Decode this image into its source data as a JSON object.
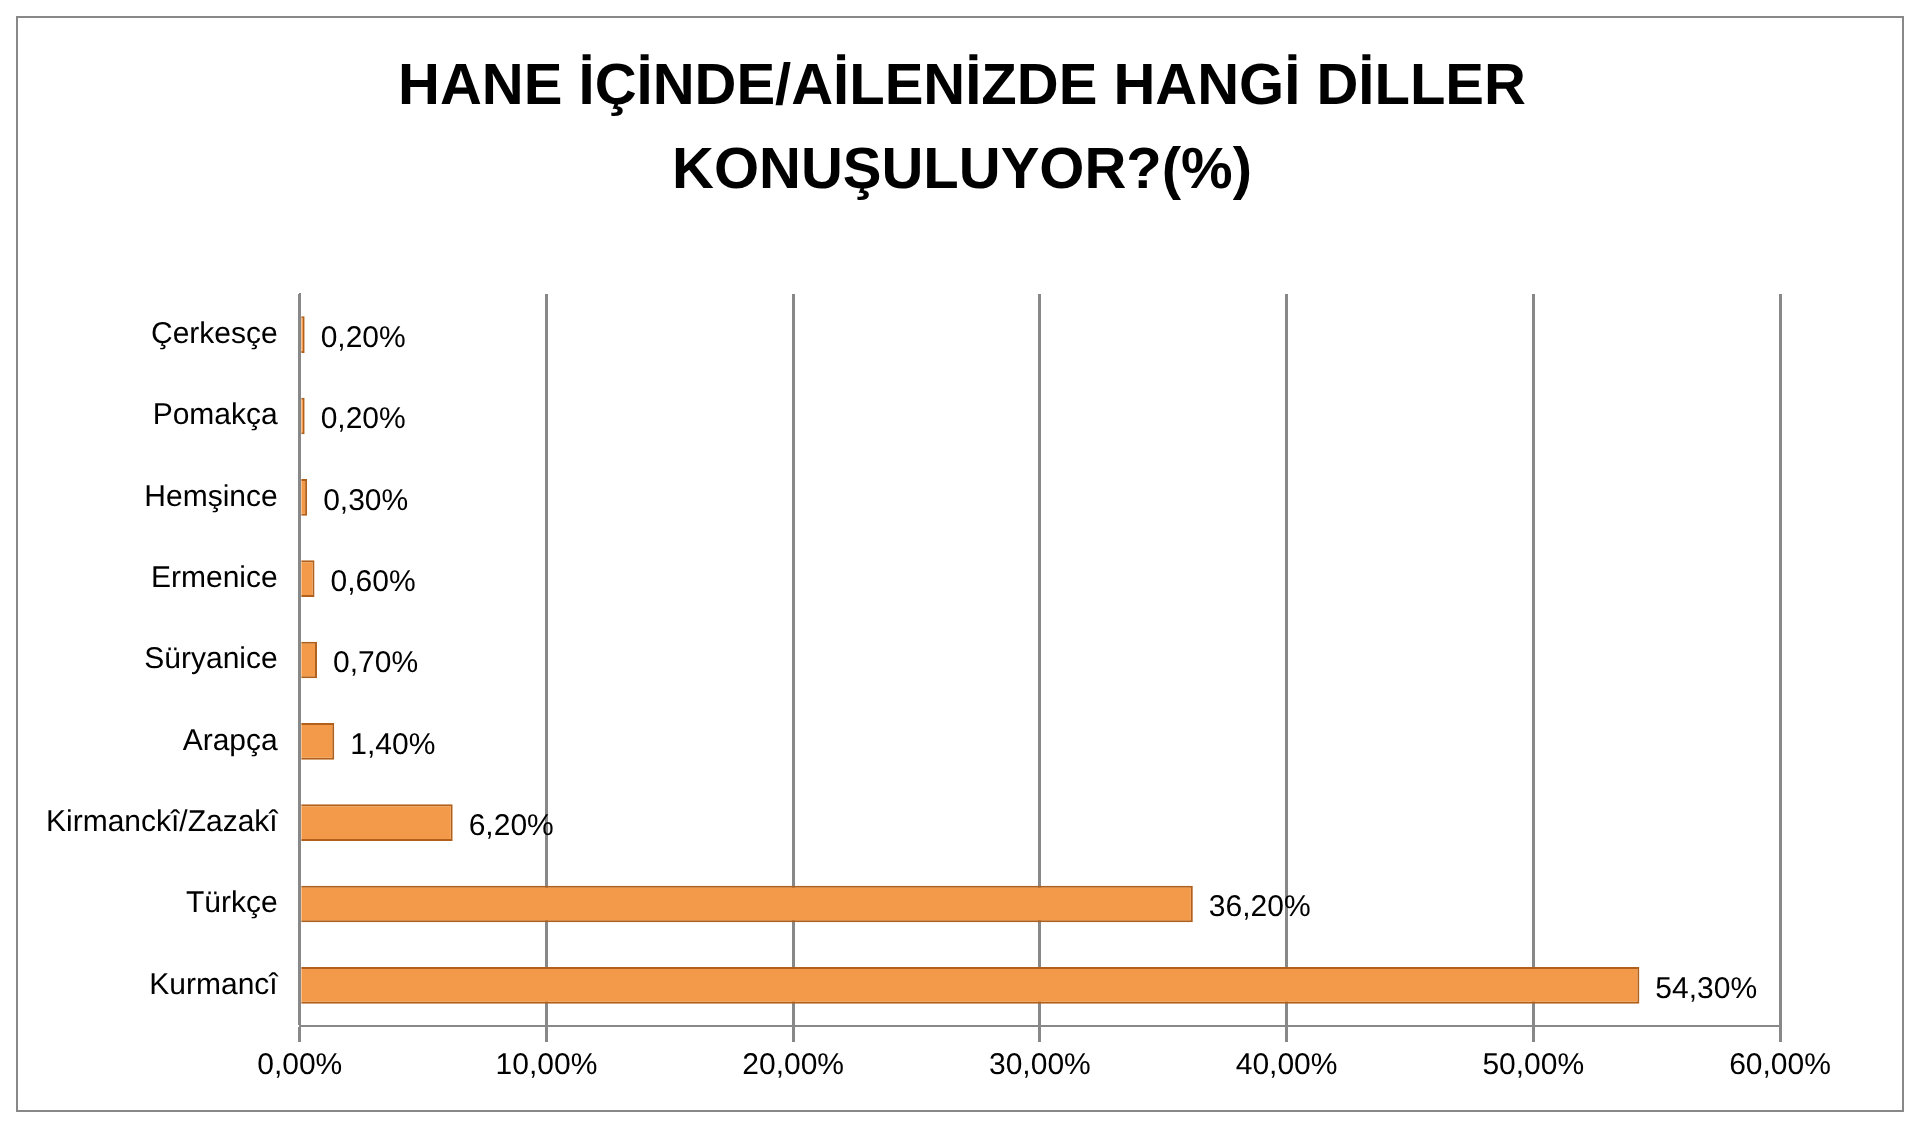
{
  "chart_data": {
    "type": "bar",
    "orientation": "horizontal",
    "title": "HANE İÇİNDE/AİLENİZDE HANGİ DİLLER KONUŞULUYOR?(%)",
    "categories": [
      "Çerkesçe",
      "Pomakça",
      "Hemşince",
      "Ermenice",
      "Süryanice",
      "Arapça",
      "Kirmanckî/Zazakî",
      "Türkçe",
      "Kurmancî"
    ],
    "values": [
      0.2,
      0.2,
      0.3,
      0.6,
      0.7,
      1.4,
      6.2,
      36.2,
      54.3
    ],
    "value_labels": [
      "0,20%",
      "0,20%",
      "0,30%",
      "0,60%",
      "0,70%",
      "1,40%",
      "6,20%",
      "36,20%",
      "54,30%"
    ],
    "color": "#f39a4a",
    "xlim": [
      0,
      60
    ],
    "xticks": [
      {
        "value": 0,
        "label": "0,00%"
      },
      {
        "value": 10,
        "label": "10,00%"
      },
      {
        "value": 20,
        "label": "20,00%"
      },
      {
        "value": 30,
        "label": "30,00%"
      },
      {
        "value": 40,
        "label": "40,00%"
      },
      {
        "value": 50,
        "label": "50,00%"
      },
      {
        "value": 60,
        "label": "60,00%"
      }
    ],
    "grid": "x",
    "legend": false
  }
}
